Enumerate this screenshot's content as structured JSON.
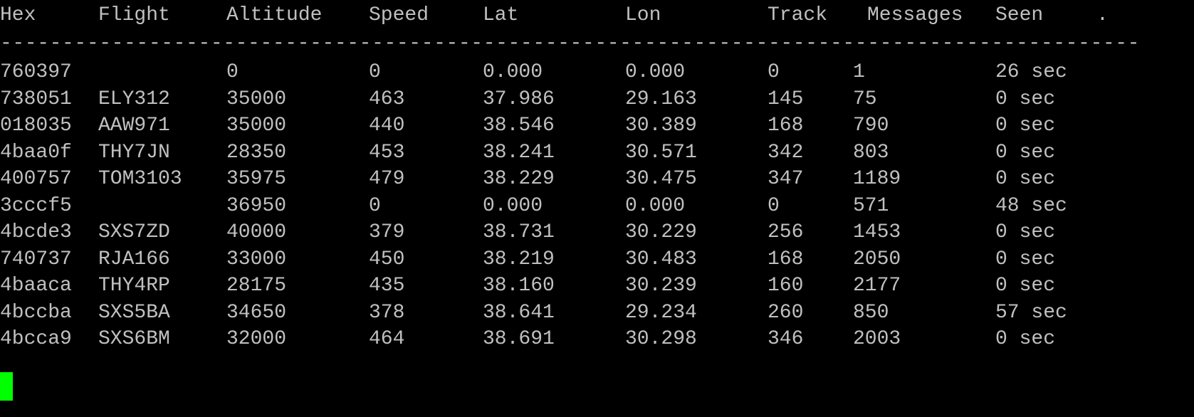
{
  "terminal": {
    "background": "#000000",
    "text_color": "#c0c0c0",
    "cursor_color": "#00ff00",
    "headers": [
      "Hex",
      "Flight",
      "Altitude",
      "Speed",
      "Lat",
      "Lon",
      "Track",
      "Messages",
      "Seen",
      "."
    ],
    "separator": "--------------------------------------------------------------------------------------------------------------------------------------------------",
    "rows": [
      [
        "760397",
        "",
        "0",
        "0",
        "0.000",
        "0.000",
        "0",
        "1",
        "26 sec"
      ],
      [
        "738051",
        "ELY312",
        "35000",
        "463",
        "37.986",
        "29.163",
        "145",
        "75",
        "0 sec"
      ],
      [
        "018035",
        "AAW971",
        "35000",
        "440",
        "38.546",
        "30.389",
        "168",
        "790",
        "0 sec"
      ],
      [
        "4baa0f",
        "THY7JN",
        "28350",
        "453",
        "38.241",
        "30.571",
        "342",
        "803",
        "0 sec"
      ],
      [
        "400757",
        "TOM3103",
        "35975",
        "479",
        "38.229",
        "30.475",
        "347",
        "1189",
        "0 sec"
      ],
      [
        "3cccf5",
        "",
        "36950",
        "0",
        "0.000",
        "0.000",
        "0",
        "571",
        "48 sec"
      ],
      [
        "4bcde3",
        "SXS7ZD",
        "40000",
        "379",
        "38.731",
        "30.229",
        "256",
        "1453",
        "0 sec"
      ],
      [
        "740737",
        "RJA166",
        "33000",
        "450",
        "38.219",
        "30.483",
        "168",
        "2050",
        "0 sec"
      ],
      [
        "4baaca",
        "THY4RP",
        "28175",
        "435",
        "38.160",
        "30.239",
        "160",
        "2177",
        "0 sec"
      ],
      [
        "4bccba",
        "SXS5BA",
        "34650",
        "378",
        "38.641",
        "29.234",
        "260",
        "850",
        "57 sec"
      ],
      [
        "4bcca9",
        "SXS6BM",
        "32000",
        "464",
        "38.691",
        "30.298",
        "346",
        "2003",
        "0 sec"
      ]
    ]
  }
}
